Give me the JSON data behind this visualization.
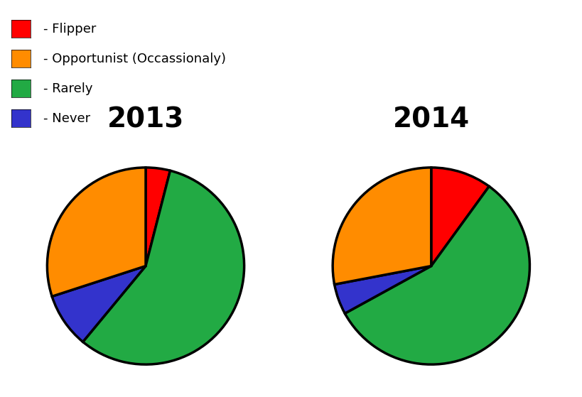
{
  "title_2013": "2013",
  "title_2014": "2014",
  "legend_labels": [
    "- Flipper",
    "- Opportunist (Occassionaly)",
    "- Rarely",
    "- Never"
  ],
  "legend_colors": [
    "#FF0000",
    "#FF8C00",
    "#22AA44",
    "#3333CC"
  ],
  "pie_2013": {
    "values": [
      4,
      57,
      9,
      30
    ],
    "colors": [
      "#FF0000",
      "#22AA44",
      "#3333CC",
      "#FF8C00"
    ],
    "startangle": 90
  },
  "pie_2014": {
    "values": [
      10,
      57,
      5,
      28
    ],
    "colors": [
      "#FF0000",
      "#22AA44",
      "#3333CC",
      "#FF8C00"
    ],
    "startangle": 90
  },
  "title_fontsize": 28,
  "legend_fontsize": 13,
  "bg_color": "#FFFFFF",
  "pie_linewidth": 2.5,
  "pie_edgecolor": "#000000"
}
